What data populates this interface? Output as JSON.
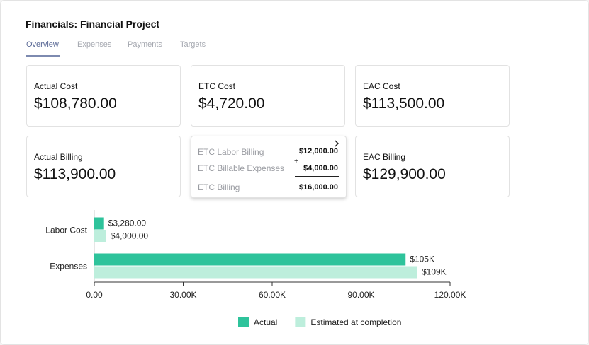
{
  "header": {
    "title": "Financials: Financial Project"
  },
  "tabs": [
    "Overview",
    "Expenses",
    "Payments",
    "Targets"
  ],
  "cards": [
    {
      "label": "Actual Cost",
      "value": "$108,780.00"
    },
    {
      "label": "ETC Cost",
      "value": "$4,720.00"
    },
    {
      "label": "EAC Cost",
      "value": "$113,500.00"
    },
    {
      "label": "Actual Billing",
      "value": "$113,900.00"
    },
    {
      "label": "EAC Billing",
      "value": "$129,900.00"
    }
  ],
  "etc_billing_breakdown": {
    "rows": [
      {
        "label": "ETC  Labor Billing",
        "value": "$12,000.00"
      },
      {
        "label": "ETC Billable Expenses",
        "operator": "+",
        "value": "$4,000.00"
      },
      {
        "label": "ETC Billing",
        "value": "$16,000.00"
      }
    ]
  },
  "chart_data": {
    "type": "barh",
    "categories": [
      "Labor Cost",
      "Expenses"
    ],
    "series": [
      {
        "name": "Actual",
        "color": "#2ec39b",
        "values": [
          3280,
          105000
        ],
        "value_labels": [
          "$3,280.00",
          "$105K"
        ]
      },
      {
        "name": "Estimated at completion",
        "color": "#bdeedc",
        "values": [
          4000,
          109000
        ],
        "value_labels": [
          "$4,000.00",
          "$109K"
        ]
      }
    ],
    "xlim": [
      0,
      120000
    ],
    "xticks": [
      {
        "value": 0,
        "label": "0.00"
      },
      {
        "value": 30000,
        "label": "30.00K"
      },
      {
        "value": 60000,
        "label": "60.00K"
      },
      {
        "value": 90000,
        "label": "90.00K"
      },
      {
        "value": 120000,
        "label": "120.00K"
      }
    ]
  }
}
